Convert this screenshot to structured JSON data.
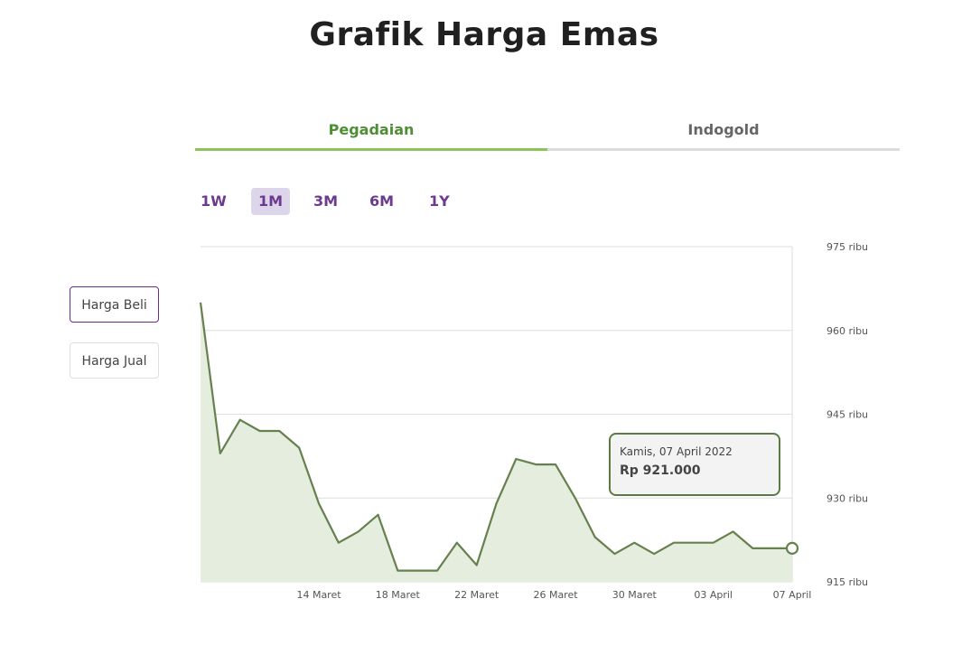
{
  "page": {
    "title": "Grafik Harga Emas"
  },
  "tabs": [
    {
      "label": "Pegadaian"
    },
    {
      "label": "Indogold"
    }
  ],
  "active_tab": "Pegadaian",
  "ranges": [
    {
      "label": "1W"
    },
    {
      "label": "1M"
    },
    {
      "label": "3M"
    },
    {
      "label": "6M"
    },
    {
      "label": "1Y"
    }
  ],
  "active_range": "1M",
  "price_type": [
    {
      "label": "Harga Beli"
    },
    {
      "label": "Harga Jual"
    }
  ],
  "active_price_type": "Harga Beli",
  "tooltip": {
    "date": "Kamis, 07 April 2022",
    "value": "Rp 921.000"
  },
  "colors": {
    "line": "#66804e",
    "area": "#e5edde",
    "accent_green": "#8cc45a",
    "accent_purple": "#6c3a8f"
  },
  "chart_data": {
    "type": "area",
    "x": [
      "08 Maret",
      "09 Maret",
      "10 Maret",
      "11 Maret",
      "12 Maret",
      "13 Maret",
      "14 Maret",
      "15 Maret",
      "16 Maret",
      "17 Maret",
      "18 Maret",
      "19 Maret",
      "20 Maret",
      "21 Maret",
      "22 Maret",
      "23 Maret",
      "24 Maret",
      "25 Maret",
      "26 Maret",
      "27 Maret",
      "28 Maret",
      "29 Maret",
      "30 Maret",
      "31 Maret",
      "01 April",
      "02 April",
      "03 April",
      "04 April",
      "05 April",
      "06 April",
      "07 April"
    ],
    "series": [
      {
        "values": [
          965,
          938,
          944,
          942,
          942,
          939,
          929,
          922,
          924,
          927,
          917,
          917,
          917,
          922,
          918,
          929,
          937,
          936,
          936,
          930,
          923,
          920,
          922,
          920,
          922,
          922,
          922,
          924,
          921,
          921,
          921
        ]
      }
    ],
    "xticks": [
      "14 Maret",
      "18 Maret",
      "22 Maret",
      "26 Maret",
      "30 Maret",
      "03 April",
      "07 April"
    ],
    "yticks": [
      "975 ribu",
      "960 ribu",
      "945 ribu",
      "930 ribu",
      "915 ribu"
    ],
    "ytick_values": [
      975,
      960,
      945,
      930,
      915
    ],
    "ylim": [
      915,
      975
    ],
    "grid": true,
    "yaxis_position": "right"
  }
}
